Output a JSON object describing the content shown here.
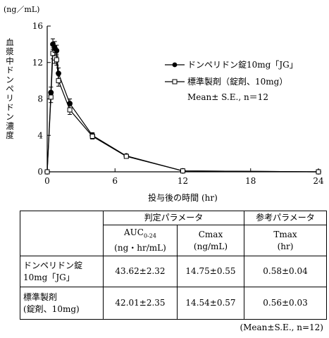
{
  "chart_data": {
    "type": "line",
    "y_unit": "(ng／mL)",
    "ylabel": "血漿中ドンペリドン濃度",
    "xlabel": "投与後の時間 (hr)",
    "xlim": [
      0,
      24
    ],
    "ylim": [
      0,
      16
    ],
    "x_ticks": [
      0,
      6,
      12,
      18,
      24
    ],
    "y_ticks": [
      0,
      4,
      8,
      12,
      16
    ],
    "grid": false,
    "legend_position": "top-right",
    "legend_note": "Mean± S.E., n＝12",
    "series": [
      {
        "name": "ドンペリドン錠10mg「JG」",
        "marker": "filled-circle",
        "color": "#000000",
        "x": [
          0,
          0.33,
          0.5,
          0.67,
          0.83,
          1,
          2,
          4,
          7,
          12,
          24
        ],
        "y": [
          0,
          8.7,
          14.0,
          13.6,
          13.3,
          10.8,
          7.5,
          4.0,
          1.75,
          0.1,
          0.0
        ],
        "err": [
          0,
          0.6,
          0.6,
          0.7,
          0.6,
          0.6,
          0.5,
          0.3,
          0.1,
          0.05,
          0
        ]
      },
      {
        "name": "標準製剤（錠剤、10mg）",
        "marker": "open-square",
        "color": "#000000",
        "x": [
          0,
          0.33,
          0.5,
          0.67,
          0.83,
          1,
          2,
          4,
          7,
          12,
          24
        ],
        "y": [
          0,
          8.2,
          13.0,
          12.5,
          12.3,
          10.0,
          6.8,
          3.9,
          1.7,
          0.1,
          0.0
        ],
        "err": [
          0,
          0.6,
          0.6,
          0.6,
          0.6,
          0.6,
          0.5,
          0.3,
          0.1,
          0.05,
          0
        ]
      }
    ]
  },
  "table": {
    "group_headers": {
      "judgement": "判定パラメータ",
      "reference": "参考パラメータ"
    },
    "columns": [
      {
        "label": "AUC",
        "sub": "0-24",
        "unit": "(ng・hr/mL)"
      },
      {
        "label": "Cmax",
        "unit": "(ng/mL)"
      },
      {
        "label": "Tmax",
        "unit": "(hr)"
      }
    ],
    "rows": [
      {
        "name_line1": "ドンペリドン錠",
        "name_line2": "10mg「JG」",
        "values": [
          "43.62±2.32",
          "14.75±0.55",
          "0.58±0.04"
        ]
      },
      {
        "name_line1": "標準製剤",
        "name_line2": "(錠剤、10mg)",
        "values": [
          "42.01±2.35",
          "14.54±0.57",
          "0.56±0.03"
        ]
      }
    ],
    "footnote": "(Mean±S.E., n=12)"
  }
}
